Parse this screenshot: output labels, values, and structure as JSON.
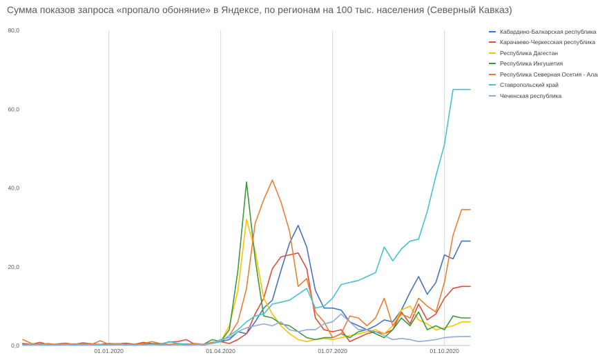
{
  "title": "Сумма показов запроса «пропало обоняние» в Яндексе, по регионам на 100 тыс. населения (Северный Кавказ)",
  "chart_data": {
    "type": "line",
    "title": "Сумма показов запроса «пропало обоняние» в Яндексе, по регионам на 100 тыс. населения (Северный Кавказ)",
    "ylim": [
      0,
      80
    ],
    "y_ticks": [
      "0,0",
      "20,0",
      "40,0",
      "60,0",
      "80,0"
    ],
    "y_tick_values": [
      0,
      20,
      40,
      60,
      80
    ],
    "x_ticks": [
      "01.01.2020",
      "01.04.2020",
      "01.07.2020",
      "01.10.2020"
    ],
    "x_tick_indices": [
      10,
      23,
      36,
      49
    ],
    "n_points": 53,
    "grid": "vertical at x ticks",
    "legend_position": "right",
    "series": [
      {
        "name": "Кабардино-Балкарская республика",
        "color": "#4472c4",
        "values": [
          0.3,
          0.2,
          0.4,
          0.3,
          0.2,
          0.3,
          0.4,
          0.3,
          0.2,
          0.3,
          0.4,
          0.3,
          0.2,
          0.3,
          0.4,
          0.3,
          0.3,
          0.2,
          0.3,
          0.4,
          0.3,
          0.2,
          0.8,
          1,
          1.5,
          3.5,
          3,
          6,
          9.5,
          11.5,
          19,
          26,
          30.5,
          25,
          14,
          9.5,
          9.5,
          9,
          6,
          5,
          4,
          5,
          6.5,
          6,
          9,
          13.5,
          17.5,
          13,
          16,
          23,
          22,
          26.5,
          26.5
        ]
      },
      {
        "name": "Карачаево-Черкесская республика",
        "color": "#e04b3a",
        "values": [
          0.5,
          0.3,
          0.8,
          0.2,
          0.4,
          0.6,
          0.3,
          0.7,
          0.4,
          0.3,
          0.5,
          0.4,
          0.6,
          0.3,
          0.8,
          0.5,
          0.4,
          0.9,
          1,
          1.5,
          0.3,
          0.2,
          0.5,
          1,
          0.5,
          1.5,
          3,
          8,
          12,
          19.5,
          22.5,
          23,
          23.5,
          19.5,
          7,
          4,
          3.5,
          4,
          1,
          2,
          3,
          3.5,
          3,
          4,
          8.5,
          5.5,
          10.5,
          6.5,
          8,
          12,
          14.5,
          15,
          15
        ]
      },
      {
        "name": "Республика Дагестан",
        "color": "#ffc000",
        "values": [
          0.2,
          0.3,
          0.2,
          0.4,
          0.3,
          0.2,
          0.3,
          0.2,
          0.3,
          0.2,
          0.3,
          0.2,
          0.3,
          0.2,
          0.2,
          0.3,
          0.2,
          0.3,
          0.2,
          0.3,
          0.2,
          0.3,
          0.5,
          1,
          5,
          14,
          32,
          24,
          12,
          8,
          5,
          3,
          1.5,
          1,
          1.5,
          1.8,
          1.5,
          2,
          2.5,
          3,
          3.5,
          4,
          3,
          5,
          9,
          10,
          6.5,
          5.5,
          4,
          4.5,
          5,
          6,
          6
        ]
      },
      {
        "name": "Республика Ингушетия",
        "color": "#3a9a3a",
        "values": [
          0.3,
          0.2,
          0.4,
          0.3,
          0.2,
          0.4,
          0.3,
          0.2,
          0.3,
          0.2,
          0.4,
          0.3,
          0.2,
          0.3,
          0.2,
          0.4,
          0.3,
          0.2,
          0.3,
          0.2,
          0.4,
          0.3,
          1.5,
          1,
          4,
          19,
          41.5,
          22,
          7.5,
          7,
          5.5,
          5,
          3.5,
          2,
          1.5,
          2,
          2,
          3,
          2,
          3.5,
          4,
          3,
          2,
          4,
          7,
          5,
          8.5,
          4,
          5,
          4,
          7.5,
          7,
          7
        ]
      },
      {
        "name": "Республика Северная Осетия - Алания",
        "color": "#ed7d31",
        "values": [
          1.5,
          0.5,
          0.3,
          0.5,
          0.2,
          0.5,
          0.3,
          0.5,
          0.3,
          1.2,
          0.3,
          0.5,
          0.3,
          0.2,
          0.5,
          1,
          0.5,
          0.3,
          0.5,
          0.3,
          0.5,
          0.3,
          0.8,
          1,
          2.5,
          6,
          14.5,
          31,
          37,
          42,
          36.5,
          29,
          15,
          17,
          8.5,
          6,
          2,
          3,
          7.5,
          7,
          5,
          7,
          12,
          5,
          8,
          7,
          12,
          10,
          8.5,
          16,
          28,
          34.5,
          34.5
        ]
      },
      {
        "name": "Ставропольский край",
        "color": "#44c2d0",
        "values": [
          0.1,
          0.3,
          0.2,
          0.1,
          0.3,
          0.2,
          0.1,
          0.3,
          0.2,
          0.1,
          0.2,
          0.3,
          0.2,
          0.1,
          0.2,
          0.3,
          0.2,
          1,
          0.5,
          0.3,
          0.2,
          0.3,
          0.5,
          1,
          2.5,
          4,
          6,
          7.5,
          8,
          10.5,
          11,
          11.5,
          13,
          14.5,
          9.5,
          10,
          12,
          15.5,
          16,
          16.5,
          17.5,
          18.5,
          25,
          21.5,
          24.5,
          26.5,
          27,
          34,
          43,
          51,
          65,
          65,
          65
        ]
      },
      {
        "name": "Чеченская республика",
        "color": "#8ea9db",
        "values": [
          0.2,
          0.1,
          0.3,
          0.2,
          0.1,
          0.2,
          0.3,
          0.1,
          0.2,
          0.3,
          0.1,
          0.2,
          0.3,
          0.1,
          0.2,
          0.3,
          0.1,
          0.2,
          0.3,
          0.1,
          0.2,
          0.3,
          0.5,
          1.5,
          2,
          3.5,
          4.5,
          5,
          5.5,
          5,
          6,
          4,
          3.5,
          4,
          4,
          5.5,
          6,
          8,
          6,
          4,
          4,
          3.5,
          2.5,
          1.5,
          1.8,
          1.5,
          1,
          1.2,
          1.5,
          2,
          2.2,
          2.3,
          2.3
        ]
      }
    ]
  }
}
